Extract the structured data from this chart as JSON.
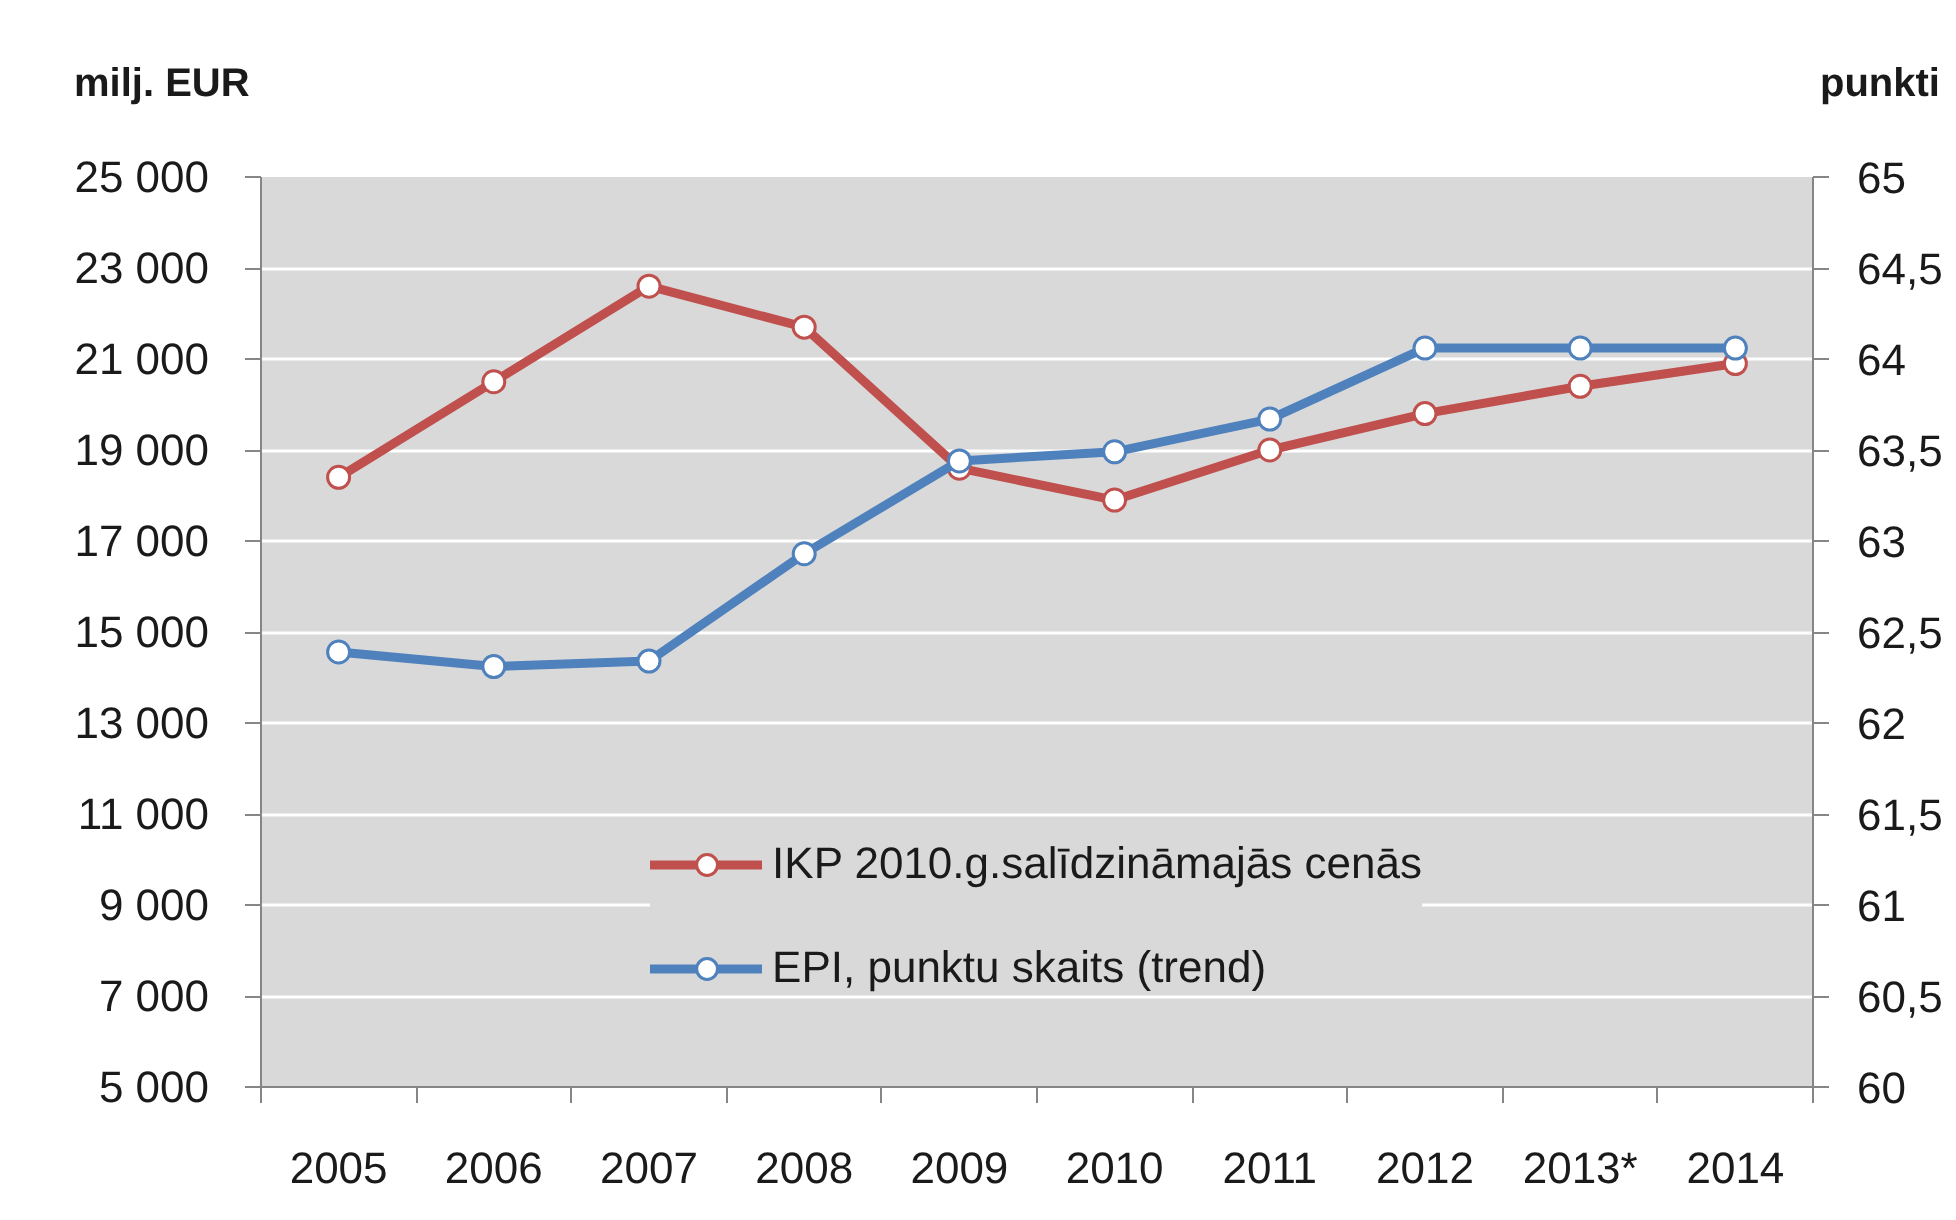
{
  "chart_data": {
    "type": "line",
    "ylabel": "milj. EUR",
    "y2label": "punkti",
    "categories": [
      "2005",
      "2006",
      "2007",
      "2008",
      "2009",
      "2010",
      "2011",
      "2012",
      "2013*",
      "2014"
    ],
    "series": [
      {
        "name": "IKP 2010.g.salīdzināmajās cenās",
        "color": "#c0504d",
        "values": [
          18400,
          20500,
          22600,
          21700,
          18600,
          17900,
          19000,
          19800,
          20400,
          20900
        ]
      },
      {
        "name": "EPI, punktu skaits (trend)",
        "color": "#4f81bd",
        "axis": "y2",
        "values": [
          62.39,
          62.31,
          62.34,
          62.93,
          63.44,
          63.49,
          63.67,
          64.06,
          64.06,
          64.06
        ]
      }
    ],
    "ylim": [
      5000,
      25000
    ],
    "yticks": [
      {
        "value": 5000,
        "label": "5 000"
      },
      {
        "value": 7000,
        "label": "7 000"
      },
      {
        "value": 9000,
        "label": "9 000"
      },
      {
        "value": 11000,
        "label": "11 000"
      },
      {
        "value": 13000,
        "label": "13 000"
      },
      {
        "value": 15000,
        "label": "15 000"
      },
      {
        "value": 17000,
        "label": "17 000"
      },
      {
        "value": 19000,
        "label": "19 000"
      },
      {
        "value": 21000,
        "label": "21 000"
      },
      {
        "value": 23000,
        "label": "23 000"
      },
      {
        "value": 25000,
        "label": "25 000"
      }
    ],
    "y2lim": [
      60,
      65
    ],
    "y2ticks": [
      60,
      {
        "value": 60.5,
        "label": "60,5"
      },
      61,
      {
        "value": 61.5,
        "label": "61,5"
      },
      62,
      {
        "value": 62.5,
        "label": "62,5"
      },
      63,
      {
        "value": 63.5,
        "label": "63,5"
      },
      64,
      {
        "value": 64.5,
        "label": "64,5"
      },
      65
    ],
    "grid": "y",
    "legend": "bottom",
    "marker": "circle",
    "line_style": "solid"
  }
}
